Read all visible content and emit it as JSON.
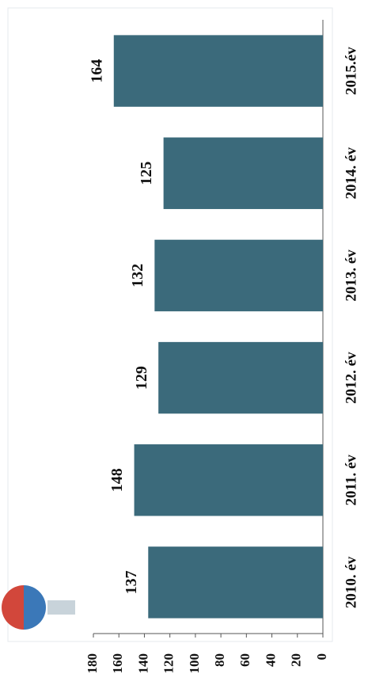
{
  "chart_data": {
    "type": "bar",
    "categories": [
      "2010. év",
      "2011. év",
      "2012. év",
      "2013. év",
      "2014. év",
      "2015.év"
    ],
    "values": [
      137,
      148,
      129,
      132,
      125,
      164
    ],
    "color": "#3b6a7b",
    "ylim": [
      0,
      180
    ],
    "yticks": [
      0,
      20,
      40,
      60,
      80,
      100,
      120,
      140,
      160,
      180
    ]
  }
}
